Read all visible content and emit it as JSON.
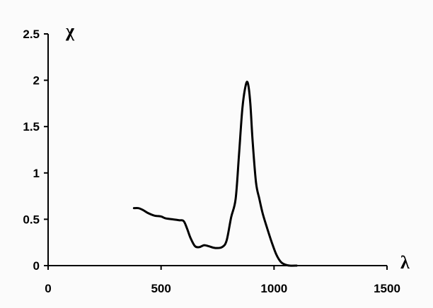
{
  "chart_data": {
    "type": "line",
    "title": "",
    "xlabel": "λ",
    "ylabel": "χ",
    "xlim": [
      0,
      1500
    ],
    "ylim": [
      0,
      2.5
    ],
    "x_ticks": [
      0,
      500,
      1000,
      1500
    ],
    "x_tick_labels": [
      "0",
      "500",
      "1000",
      "1500"
    ],
    "y_ticks": [
      0,
      0.5,
      1,
      1.5,
      2,
      2.5
    ],
    "y_tick_labels": [
      "0",
      "0.5",
      "1",
      "1.5",
      "2",
      "2.5"
    ],
    "grid": false,
    "legend": "none",
    "series": [
      {
        "color": "#000000",
        "x": [
          380,
          400,
          420,
          440,
          470,
          500,
          520,
          550,
          580,
          600,
          615,
          630,
          650,
          670,
          690,
          710,
          740,
          770,
          790,
          810,
          830,
          845,
          860,
          875,
          885,
          895,
          905,
          920,
          935,
          950,
          970,
          990,
          1010,
          1030,
          1050,
          1070,
          1100
        ],
        "y": [
          0.62,
          0.62,
          0.6,
          0.57,
          0.54,
          0.53,
          0.51,
          0.5,
          0.49,
          0.48,
          0.4,
          0.3,
          0.21,
          0.2,
          0.22,
          0.21,
          0.19,
          0.2,
          0.27,
          0.52,
          0.72,
          1.2,
          1.7,
          1.95,
          1.96,
          1.75,
          1.35,
          0.9,
          0.72,
          0.56,
          0.4,
          0.25,
          0.12,
          0.04,
          0.01,
          0.0,
          0.0
        ]
      }
    ]
  }
}
